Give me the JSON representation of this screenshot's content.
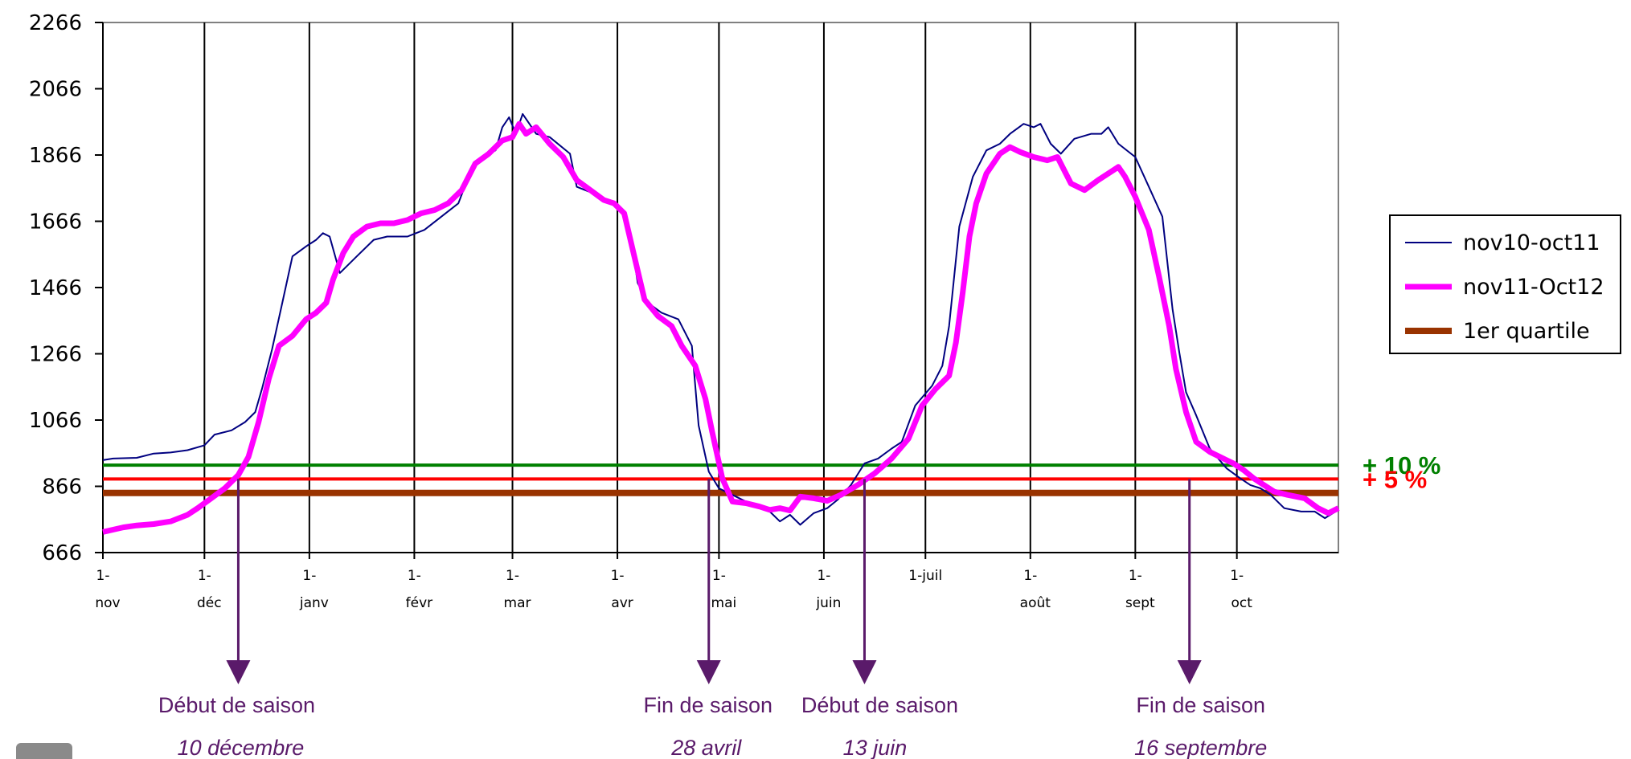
{
  "chart_data": {
    "type": "line",
    "title": "",
    "xlabel": "",
    "ylabel": "",
    "ylim": [
      666,
      2266
    ],
    "yticks": [
      666,
      866,
      1066,
      1266,
      1466,
      1666,
      1866,
      2066,
      2266
    ],
    "xlim": [
      0,
      365
    ],
    "grid": {
      "vertical": true,
      "horizontal": false
    },
    "legend_position": "right",
    "months": [
      {
        "l1": "1-",
        "l2": "nov",
        "day": 0
      },
      {
        "l1": "1-",
        "l2": "déc",
        "day": 30
      },
      {
        "l1": "1-",
        "l2": "janv",
        "day": 61
      },
      {
        "l1": "1-",
        "l2": "févr",
        "day": 92
      },
      {
        "l1": "1-",
        "l2": "mar",
        "day": 121
      },
      {
        "l1": "1-",
        "l2": "avr",
        "day": 152
      },
      {
        "l1": "1-",
        "l2": "mai",
        "day": 182
      },
      {
        "l1": "1-",
        "l2": "juin",
        "day": 213
      },
      {
        "l1": "1-juil",
        "l2": "",
        "day": 243
      },
      {
        "l1": "1-",
        "l2": "août",
        "day": 274
      },
      {
        "l1": "1-",
        "l2": "sept",
        "day": 305
      },
      {
        "l1": "1-",
        "l2": "oct",
        "day": 335
      }
    ],
    "series": [
      {
        "name": "nov10-oct11",
        "color": "#000080",
        "points": [
          [
            0,
            945
          ],
          [
            3,
            950
          ],
          [
            10,
            952
          ],
          [
            15,
            965
          ],
          [
            20,
            968
          ],
          [
            25,
            975
          ],
          [
            30,
            990
          ],
          [
            33,
            1022
          ],
          [
            38,
            1035
          ],
          [
            42,
            1060
          ],
          [
            45,
            1090
          ],
          [
            47,
            1160
          ],
          [
            50,
            1280
          ],
          [
            53,
            1420
          ],
          [
            56,
            1560
          ],
          [
            60,
            1590
          ],
          [
            63,
            1610
          ],
          [
            65,
            1630
          ],
          [
            67,
            1620
          ],
          [
            70,
            1510
          ],
          [
            75,
            1560
          ],
          [
            80,
            1610
          ],
          [
            84,
            1620
          ],
          [
            90,
            1620
          ],
          [
            95,
            1640
          ],
          [
            100,
            1680
          ],
          [
            105,
            1720
          ],
          [
            108,
            1800
          ],
          [
            112,
            1860
          ],
          [
            116,
            1880
          ],
          [
            118,
            1950
          ],
          [
            120,
            1980
          ],
          [
            122,
            1930
          ],
          [
            124,
            1990
          ],
          [
            126,
            1960
          ],
          [
            128,
            1930
          ],
          [
            132,
            1920
          ],
          [
            138,
            1870
          ],
          [
            140,
            1770
          ],
          [
            145,
            1750
          ],
          [
            150,
            1720
          ],
          [
            153,
            1700
          ],
          [
            156,
            1620
          ],
          [
            158,
            1480
          ],
          [
            161,
            1420
          ],
          [
            165,
            1390
          ],
          [
            170,
            1370
          ],
          [
            174,
            1290
          ],
          [
            176,
            1050
          ],
          [
            179,
            910
          ],
          [
            182,
            860
          ],
          [
            186,
            840
          ],
          [
            190,
            820
          ],
          [
            194,
            800
          ],
          [
            197,
            790
          ],
          [
            200,
            760
          ],
          [
            203,
            780
          ],
          [
            206,
            750
          ],
          [
            210,
            785
          ],
          [
            214,
            800
          ],
          [
            217,
            825
          ],
          [
            221,
            870
          ],
          [
            225,
            935
          ],
          [
            229,
            950
          ],
          [
            233,
            980
          ],
          [
            236,
            1000
          ],
          [
            240,
            1110
          ],
          [
            245,
            1170
          ],
          [
            248,
            1230
          ],
          [
            250,
            1350
          ],
          [
            253,
            1650
          ],
          [
            257,
            1800
          ],
          [
            261,
            1880
          ],
          [
            265,
            1900
          ],
          [
            268,
            1930
          ],
          [
            272,
            1960
          ],
          [
            275,
            1950
          ],
          [
            277,
            1960
          ],
          [
            280,
            1900
          ],
          [
            283,
            1870
          ],
          [
            287,
            1915
          ],
          [
            292,
            1930
          ],
          [
            295,
            1930
          ],
          [
            297,
            1950
          ],
          [
            300,
            1900
          ],
          [
            305,
            1860
          ],
          [
            309,
            1770
          ],
          [
            313,
            1680
          ],
          [
            316,
            1400
          ],
          [
            318,
            1270
          ],
          [
            320,
            1150
          ],
          [
            323,
            1080
          ],
          [
            327,
            980
          ],
          [
            332,
            920
          ],
          [
            336,
            890
          ],
          [
            339,
            870
          ],
          [
            342,
            860
          ],
          [
            345,
            840
          ],
          [
            349,
            800
          ],
          [
            354,
            790
          ],
          [
            358,
            790
          ],
          [
            361,
            770
          ],
          [
            365,
            795
          ]
        ]
      },
      {
        "name": "nov11-Oct12",
        "color": "#ff00ff",
        "points": [
          [
            0,
            728
          ],
          [
            3,
            735
          ],
          [
            6,
            742
          ],
          [
            10,
            748
          ],
          [
            15,
            752
          ],
          [
            20,
            760
          ],
          [
            25,
            780
          ],
          [
            28,
            800
          ],
          [
            32,
            830
          ],
          [
            36,
            860
          ],
          [
            40,
            900
          ],
          [
            43,
            955
          ],
          [
            46,
            1060
          ],
          [
            49,
            1190
          ],
          [
            52,
            1290
          ],
          [
            56,
            1320
          ],
          [
            60,
            1370
          ],
          [
            63,
            1390
          ],
          [
            66,
            1420
          ],
          [
            68,
            1490
          ],
          [
            71,
            1570
          ],
          [
            74,
            1620
          ],
          [
            78,
            1650
          ],
          [
            82,
            1660
          ],
          [
            86,
            1660
          ],
          [
            90,
            1670
          ],
          [
            94,
            1690
          ],
          [
            98,
            1700
          ],
          [
            102,
            1720
          ],
          [
            106,
            1760
          ],
          [
            110,
            1840
          ],
          [
            114,
            1870
          ],
          [
            118,
            1910
          ],
          [
            121,
            1920
          ],
          [
            123,
            1960
          ],
          [
            125,
            1930
          ],
          [
            128,
            1950
          ],
          [
            132,
            1900
          ],
          [
            136,
            1860
          ],
          [
            140,
            1790
          ],
          [
            144,
            1760
          ],
          [
            148,
            1730
          ],
          [
            151,
            1720
          ],
          [
            154,
            1690
          ],
          [
            157,
            1560
          ],
          [
            160,
            1430
          ],
          [
            164,
            1380
          ],
          [
            168,
            1350
          ],
          [
            171,
            1290
          ],
          [
            175,
            1230
          ],
          [
            178,
            1130
          ],
          [
            180,
            1030
          ],
          [
            183,
            890
          ],
          [
            186,
            820
          ],
          [
            190,
            815
          ],
          [
            194,
            805
          ],
          [
            197,
            795
          ],
          [
            200,
            800
          ],
          [
            203,
            793
          ],
          [
            206,
            835
          ],
          [
            210,
            830
          ],
          [
            214,
            822
          ],
          [
            218,
            840
          ],
          [
            223,
            870
          ],
          [
            228,
            905
          ],
          [
            233,
            950
          ],
          [
            238,
            1010
          ],
          [
            242,
            1110
          ],
          [
            246,
            1160
          ],
          [
            250,
            1200
          ],
          [
            252,
            1300
          ],
          [
            254,
            1450
          ],
          [
            256,
            1620
          ],
          [
            258,
            1720
          ],
          [
            261,
            1810
          ],
          [
            265,
            1870
          ],
          [
            268,
            1890
          ],
          [
            271,
            1875
          ],
          [
            275,
            1860
          ],
          [
            279,
            1850
          ],
          [
            282,
            1860
          ],
          [
            286,
            1780
          ],
          [
            290,
            1760
          ],
          [
            294,
            1790
          ],
          [
            297,
            1810
          ],
          [
            300,
            1830
          ],
          [
            302,
            1800
          ],
          [
            305,
            1740
          ],
          [
            309,
            1640
          ],
          [
            312,
            1500
          ],
          [
            315,
            1350
          ],
          [
            317,
            1220
          ],
          [
            320,
            1090
          ],
          [
            323,
            1000
          ],
          [
            327,
            970
          ],
          [
            331,
            950
          ],
          [
            334,
            935
          ],
          [
            337,
            915
          ],
          [
            340,
            890
          ],
          [
            343,
            870
          ],
          [
            346,
            850
          ],
          [
            350,
            840
          ],
          [
            355,
            830
          ],
          [
            359,
            800
          ],
          [
            362,
            785
          ],
          [
            365,
            800
          ]
        ]
      },
      {
        "name": "1er quartile",
        "color": "#993300",
        "value": 846
      }
    ],
    "reference_lines": [
      {
        "label": "+ 10 %",
        "value": 930,
        "color": "#008000"
      },
      {
        "label": "+ 5 %",
        "value": 888,
        "color": "#ff0000"
      }
    ],
    "annotations": [
      {
        "title": "Début de saison",
        "date": "10 décembre",
        "day": 40
      },
      {
        "title": "Fin de saison",
        "date": "28 avril",
        "day": 179
      },
      {
        "title": "Début de saison",
        "date": "13 juin",
        "day": 225
      },
      {
        "title": "Fin de saison",
        "date": "16 septembre",
        "day": 321
      }
    ]
  }
}
